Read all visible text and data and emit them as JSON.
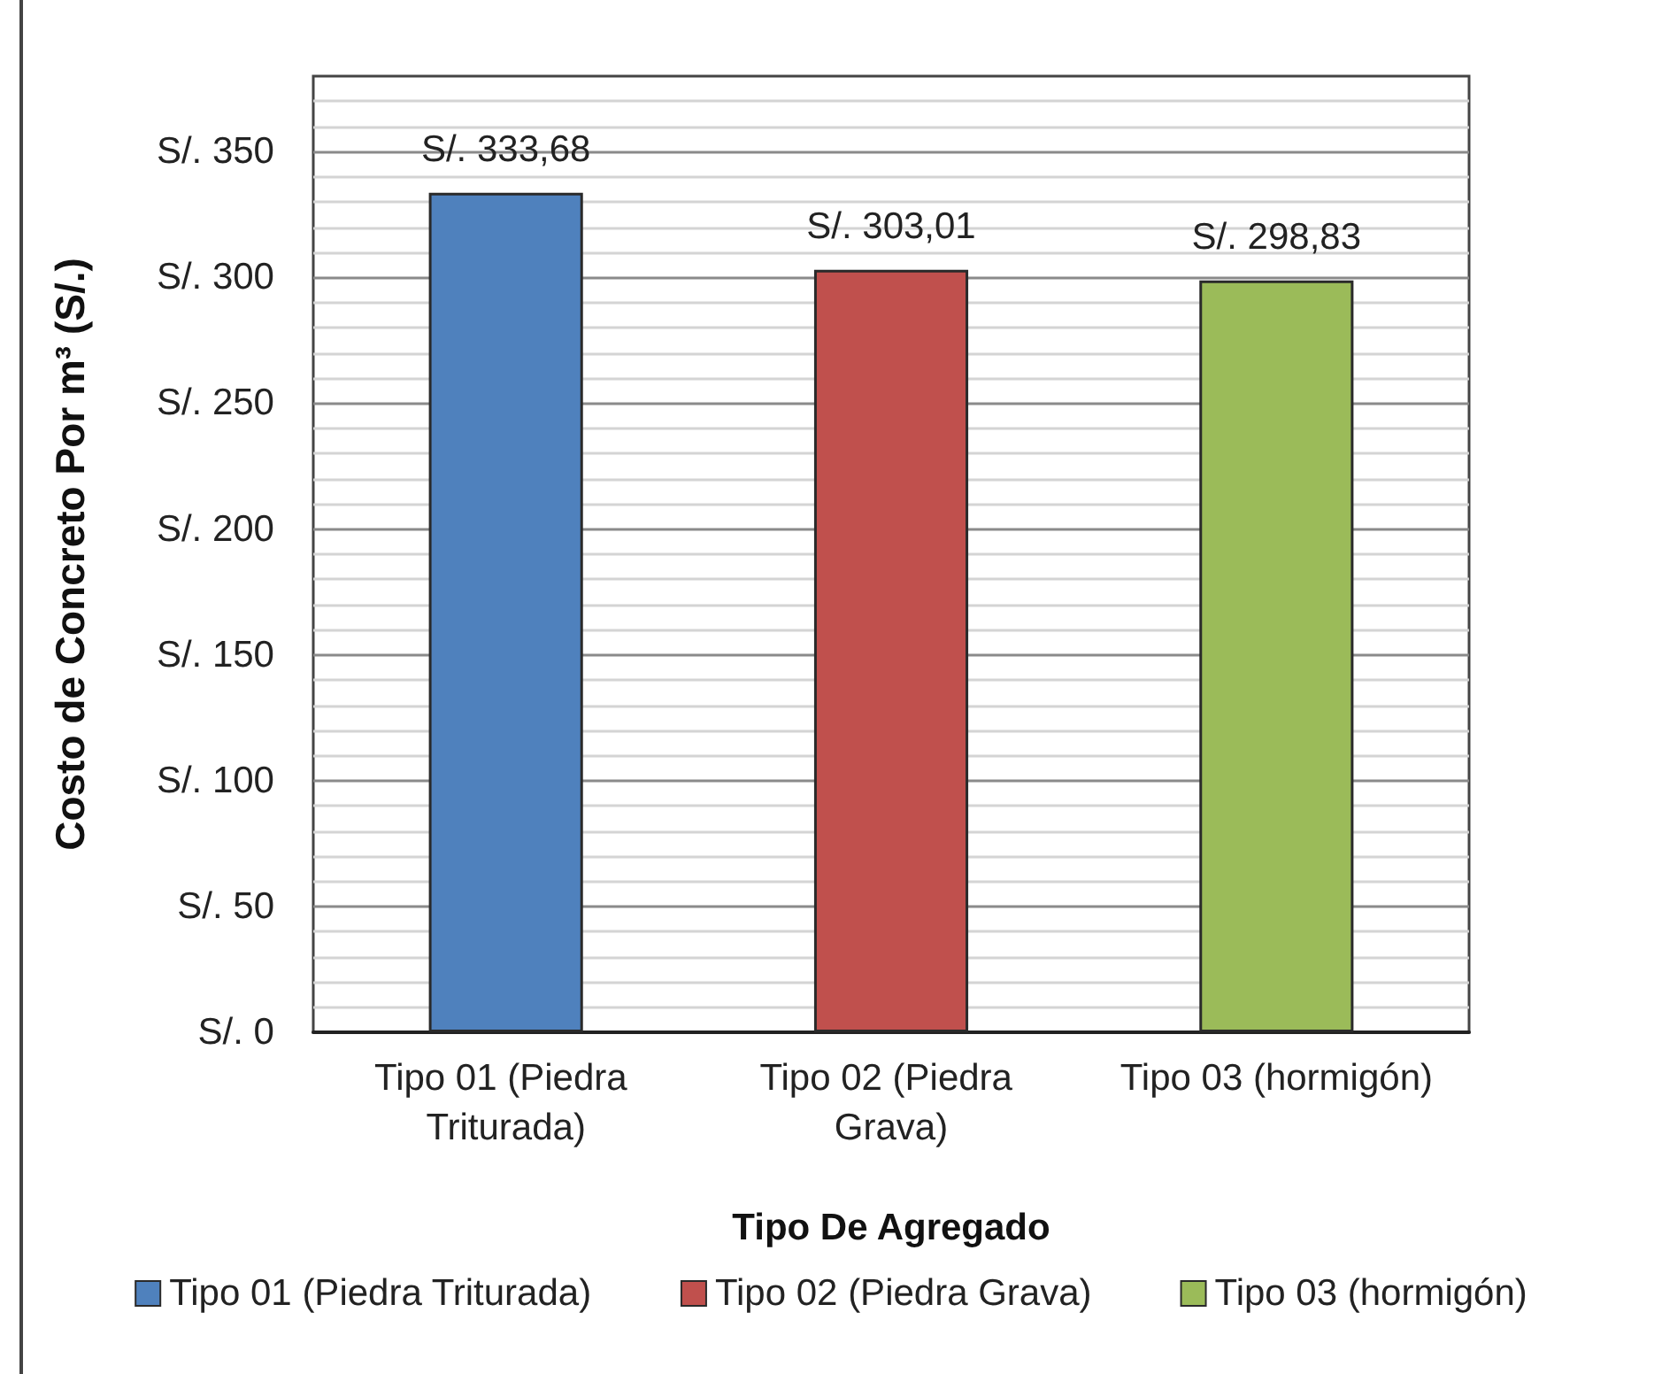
{
  "chart_data": {
    "type": "bar",
    "xlabel": "Tipo De Agregado",
    "ylabel": "Costo de Concreto Por m³ (S/.)",
    "categories": [
      "Tipo 01 (Piedra Triturada)",
      "Tipo 02 (Piedra Grava)",
      "Tipo 03 (hormigón)"
    ],
    "series": [
      {
        "name": "Tipo 01 (Piedra Triturada)",
        "color": "#4f81bd",
        "values": [
          333.68,
          null,
          null
        ],
        "value_labels": [
          "S/. 333,68",
          null,
          null
        ]
      },
      {
        "name": "Tipo 02 (Piedra Grava)",
        "color": "#c0504d",
        "values": [
          null,
          303.01,
          null
        ],
        "value_labels": [
          null,
          "S/. 303,01",
          null
        ]
      },
      {
        "name": "Tipo 03 (hormigón)",
        "color": "#9bbb59",
        "values": [
          null,
          null,
          298.83
        ],
        "value_labels": [
          null,
          null,
          "S/. 298,83"
        ]
      }
    ],
    "ylim": [
      0,
      380
    ],
    "yticks": [
      {
        "value": 0,
        "label": "S/. 0"
      },
      {
        "value": 10,
        "label": null
      },
      {
        "value": 20,
        "label": null
      },
      {
        "value": 30,
        "label": null
      },
      {
        "value": 40,
        "label": null
      },
      {
        "value": 50,
        "label": "S/. 50"
      },
      {
        "value": 60,
        "label": null
      },
      {
        "value": 70,
        "label": null
      },
      {
        "value": 80,
        "label": null
      },
      {
        "value": 90,
        "label": null
      },
      {
        "value": 100,
        "label": "S/. 100"
      },
      {
        "value": 110,
        "label": null
      },
      {
        "value": 120,
        "label": null
      },
      {
        "value": 130,
        "label": null
      },
      {
        "value": 140,
        "label": null
      },
      {
        "value": 150,
        "label": "S/. 150"
      },
      {
        "value": 160,
        "label": null
      },
      {
        "value": 170,
        "label": null
      },
      {
        "value": 180,
        "label": null
      },
      {
        "value": 190,
        "label": null
      },
      {
        "value": 200,
        "label": "S/. 200"
      },
      {
        "value": 210,
        "label": null
      },
      {
        "value": 220,
        "label": null
      },
      {
        "value": 230,
        "label": null
      },
      {
        "value": 240,
        "label": null
      },
      {
        "value": 250,
        "label": "S/. 250"
      },
      {
        "value": 260,
        "label": null
      },
      {
        "value": 270,
        "label": null
      },
      {
        "value": 280,
        "label": null
      },
      {
        "value": 290,
        "label": null
      },
      {
        "value": 300,
        "label": "S/. 300"
      },
      {
        "value": 310,
        "label": null
      },
      {
        "value": 320,
        "label": null
      },
      {
        "value": 330,
        "label": null
      },
      {
        "value": 340,
        "label": null
      },
      {
        "value": 350,
        "label": "S/. 350"
      },
      {
        "value": 360,
        "label": null
      },
      {
        "value": 370,
        "label": null
      }
    ],
    "grid": "y",
    "legend": "bottom"
  }
}
